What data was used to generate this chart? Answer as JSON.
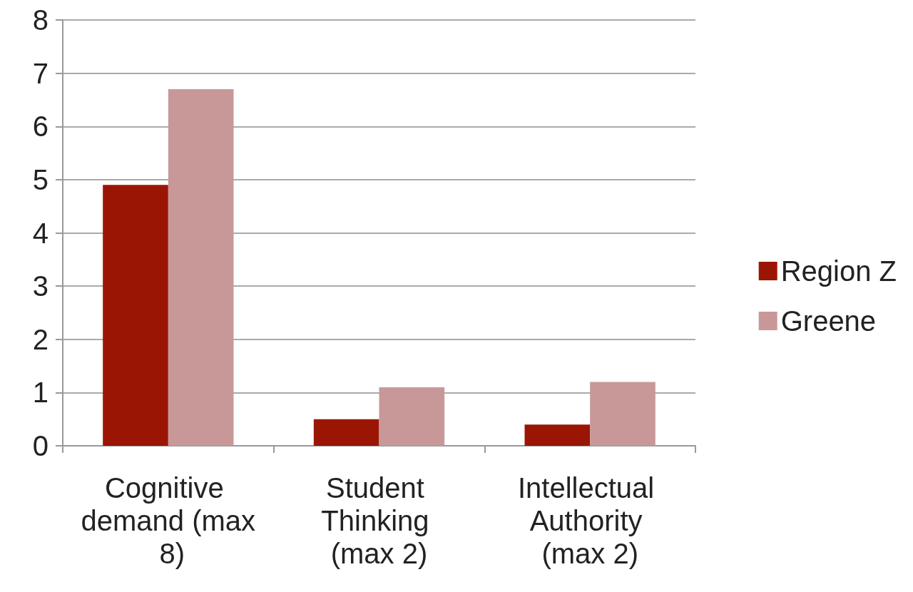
{
  "chart_data": {
    "type": "bar",
    "categories": [
      "Cognitive demand (max 8)",
      "Student Thinking (max 2)",
      "Intellectual Authority (max 2)"
    ],
    "series": [
      {
        "name": "Region Z",
        "color": "#9b1505",
        "values": [
          4.9,
          0.5,
          0.4
        ]
      },
      {
        "name": "Greene",
        "color": "#c89898",
        "values": [
          6.7,
          1.1,
          1.2
        ]
      }
    ],
    "ylim": [
      0,
      8
    ],
    "yticks": [
      0,
      1,
      2,
      3,
      4,
      5,
      6,
      7,
      8
    ],
    "grid": "y",
    "legend": "right"
  }
}
